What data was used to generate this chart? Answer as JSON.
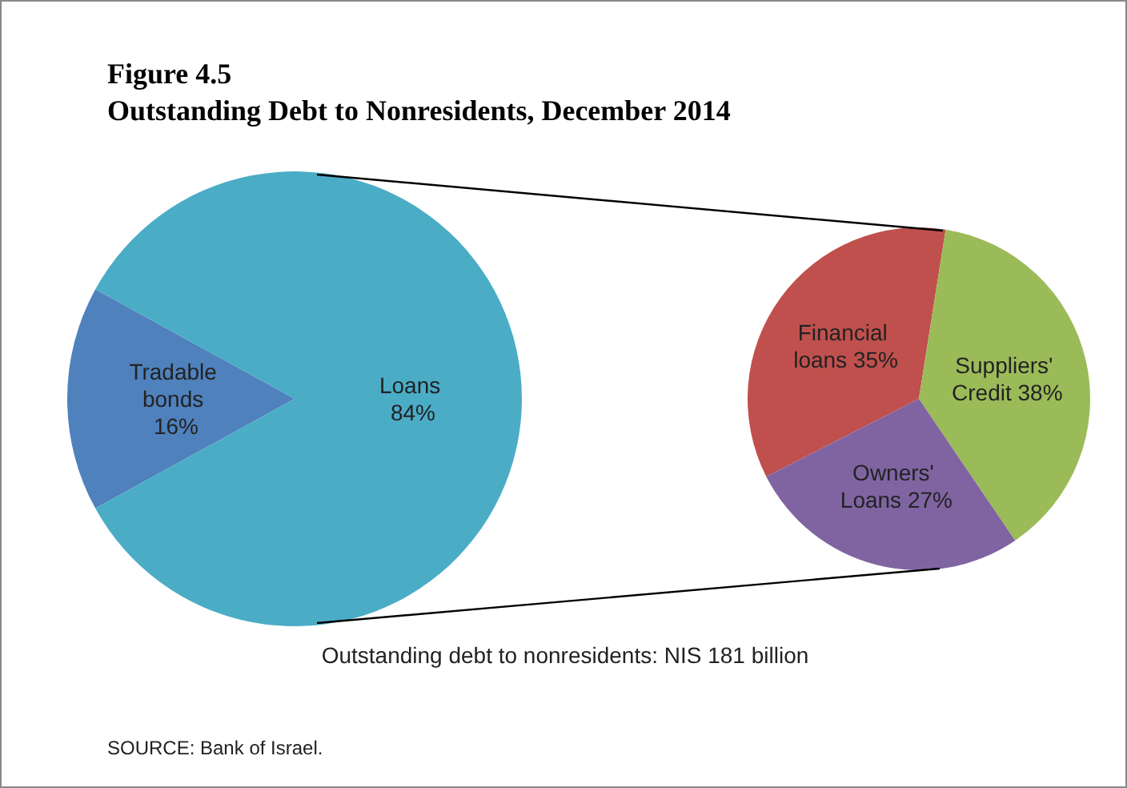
{
  "chart_data": [
    {
      "type": "pie",
      "title": "Figure 4.5",
      "subtitle": "Outstanding Debt to Nonresidents, December 2014",
      "categories": [
        "Tradable bonds",
        "Loans"
      ],
      "values": [
        16,
        84
      ],
      "colors": [
        "#4f81bd",
        "#4bacc6"
      ],
      "value_labels": [
        "16%",
        "84%"
      ],
      "annotations": [
        "Outstanding debt to nonresidents: NIS 181 billion",
        "SOURCE: Bank of Israel."
      ]
    },
    {
      "type": "pie",
      "categories": [
        "Financial loans",
        "Suppliers' Credit",
        "Owners' Loans"
      ],
      "values": [
        35,
        38,
        27
      ],
      "colors": [
        "#c0504d",
        "#9bbb59",
        "#8064a2"
      ],
      "value_labels": [
        "35%",
        "38%",
        "27%"
      ]
    }
  ]
}
